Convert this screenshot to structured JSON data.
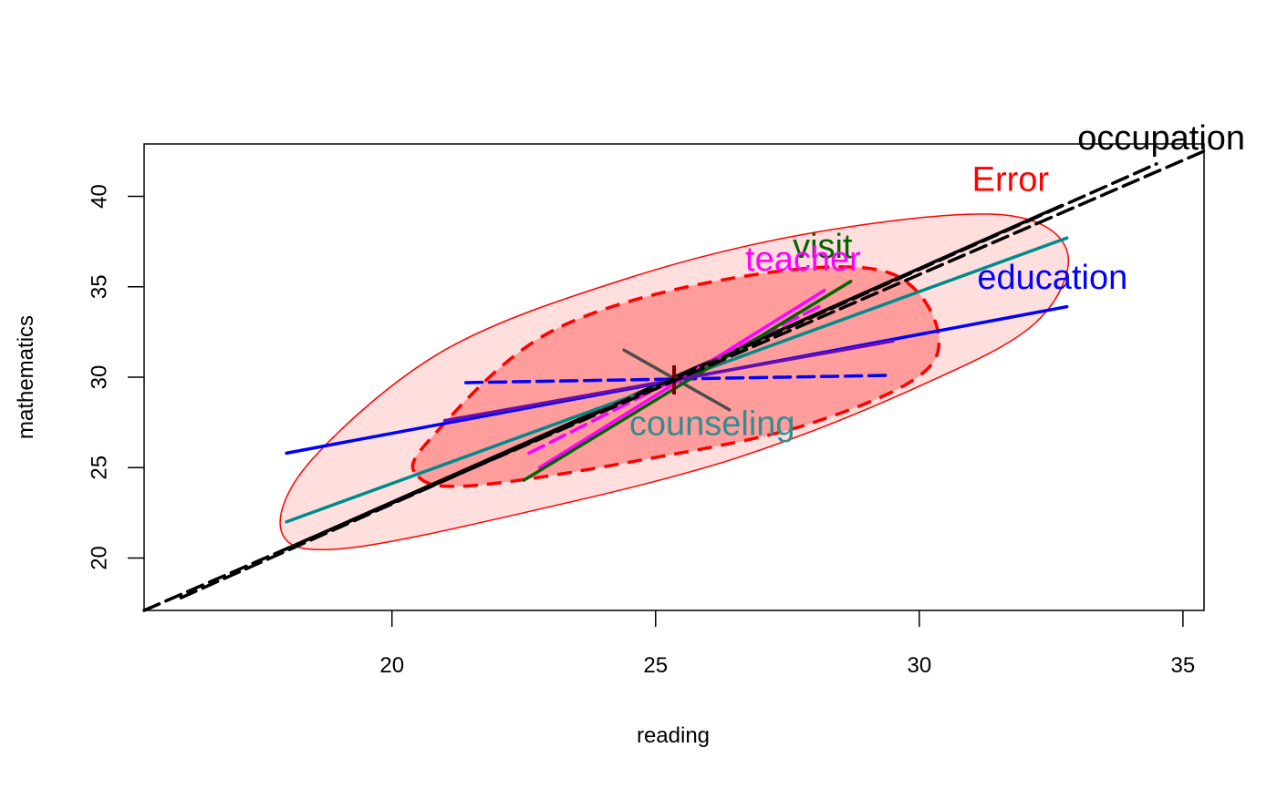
{
  "chart_data": {
    "type": "scatter",
    "subtype": "hypothesis-error-plot",
    "title": "",
    "xlabel": "reading",
    "ylabel": "mathematics",
    "xlim": [
      15.3,
      35.4
    ],
    "ylim": [
      17.1,
      42.9
    ],
    "x_ticks": [
      20,
      25,
      30,
      35
    ],
    "y_ticks": [
      20,
      25,
      30,
      35,
      40
    ],
    "x_tick_labels": [
      "20",
      "25",
      "30",
      "35"
    ],
    "y_tick_labels": [
      "20",
      "25",
      "30",
      "35",
      "40"
    ],
    "center": {
      "x": 25.4,
      "y": 29.9
    },
    "ellipses": [
      {
        "label": "Error",
        "center": [
          25.4,
          29.9
        ],
        "points": [
          [
            17.9,
            21.5
          ],
          [
            19.0,
            20.5
          ],
          [
            22.5,
            22.5
          ],
          [
            26.5,
            25.5
          ],
          [
            30.0,
            29.5
          ],
          [
            32.2,
            33.0
          ],
          [
            32.8,
            37.0
          ],
          [
            31.5,
            39.0
          ],
          [
            28.0,
            38.0
          ],
          [
            24.5,
            35.5
          ],
          [
            21.0,
            31.5
          ],
          [
            18.5,
            25.5
          ]
        ],
        "stroke": "#ff0000",
        "fill": "#ffdede",
        "dashed": false
      },
      {
        "label": "",
        "center": [
          25.4,
          29.9
        ],
        "points": [
          [
            20.5,
            24.5
          ],
          [
            21.5,
            24.0
          ],
          [
            24.5,
            25.3
          ],
          [
            28.0,
            27.5
          ],
          [
            30.3,
            31.0
          ],
          [
            29.5,
            35.7
          ],
          [
            26.5,
            35.5
          ],
          [
            23.0,
            32.5
          ],
          [
            20.7,
            26.5
          ]
        ],
        "stroke": "#ff0000",
        "fill": "#ff9c9c",
        "dashed": true
      }
    ],
    "series": [
      {
        "name": "occupation",
        "color": "#000000",
        "segments": [
          {
            "x": [
              15.3,
              35.4
            ],
            "y": [
              17.1,
              42.5
            ],
            "dashed": true
          },
          {
            "x": [
              16.0,
              34.5
            ],
            "y": [
              17.8,
              41.8
            ],
            "dashed": true
          },
          {
            "x": [
              18.0,
              32.7
            ],
            "y": [
              20.5,
              39.5
            ],
            "dashed": false
          }
        ]
      },
      {
        "name": "education",
        "color": "#0000ff",
        "segments": [
          {
            "x": [
              18.0,
              32.8
            ],
            "y": [
              25.8,
              33.9
            ],
            "dashed": false
          },
          {
            "x": [
              21.4,
              29.4
            ],
            "y": [
              29.7,
              30.1
            ],
            "dashed": true
          }
        ]
      },
      {
        "name": "counseling",
        "color": "#008b8b",
        "segments": [
          {
            "x": [
              18.0,
              32.8
            ],
            "y": [
              22.0,
              37.7
            ],
            "dashed": false
          }
        ]
      },
      {
        "name": "counseling-axes",
        "color": "#4d4d4d",
        "segments": [
          {
            "x": [
              24.4,
              26.4
            ],
            "y": [
              31.5,
              28.2
            ],
            "dashed": false
          },
          {
            "x": [
              24.6,
              26.3
            ],
            "y": [
              28.9,
              30.9
            ],
            "dashed": false
          }
        ]
      },
      {
        "name": "teacher",
        "color": "#ff00ff",
        "segments": [
          {
            "x": [
              22.8,
              28.2
            ],
            "y": [
              25.0,
              34.8
            ],
            "dashed": false
          },
          {
            "x": [
              22.6,
              28.1
            ],
            "y": [
              25.8,
              33.9
            ],
            "dashed": true
          }
        ]
      },
      {
        "name": "visit",
        "color": "#006400",
        "segments": [
          {
            "x": [
              22.5,
              28.7
            ],
            "y": [
              24.3,
              35.3
            ],
            "dashed": false
          }
        ]
      },
      {
        "name": "",
        "color": "#6a0dad",
        "segments": [
          {
            "x": [
              21.0,
              29.5
            ],
            "y": [
              27.6,
              32.0
            ],
            "dashed": false
          }
        ]
      }
    ],
    "center_marker": {
      "x": 25.35,
      "y": 29.85,
      "color": "#7a0000"
    },
    "labels": [
      {
        "text": "occupation",
        "x": 33.0,
        "y": 42.6,
        "color": "#000000"
      },
      {
        "text": "Error",
        "x": 31.0,
        "y": 40.3,
        "color": "#ff0000"
      },
      {
        "text": "visit",
        "x": 27.6,
        "y": 36.6,
        "color": "#006400"
      },
      {
        "text": "teacher",
        "x": 26.7,
        "y": 35.9,
        "color": "#ff00ff"
      },
      {
        "text": "education",
        "x": 31.1,
        "y": 34.9,
        "color": "#0000ff"
      },
      {
        "text": "counseling",
        "x": 24.5,
        "y": 26.8,
        "color": "#2f8f8f"
      }
    ]
  }
}
